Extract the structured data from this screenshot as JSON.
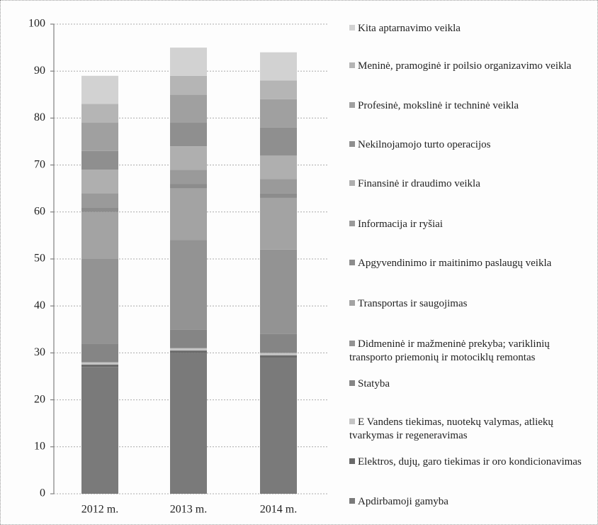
{
  "chart_data": {
    "type": "stacked_bar",
    "categories": [
      "2012 m.",
      "2013 m.",
      "2014 m."
    ],
    "ylim": [
      0,
      100
    ],
    "yticks": [
      0,
      10,
      20,
      30,
      40,
      50,
      60,
      70,
      80,
      90,
      100
    ],
    "grid": true,
    "series": [
      {
        "name": "Apdirbamoji gamyba",
        "color": "#7a7a7a",
        "values": [
          27,
          30,
          29
        ]
      },
      {
        "name": "Elektros, dujų, garo tiekimas ir oro kondicionavimas",
        "color": "#6a6a6a",
        "values": [
          0.5,
          0.5,
          0.5
        ]
      },
      {
        "name": "E Vandens tiekimas, nuotekų valymas, atliekų tvarkymas ir regeneravimas",
        "color": "#c4c4c4",
        "values": [
          0.5,
          0.5,
          0.5
        ]
      },
      {
        "name": "Statyba",
        "color": "#858585",
        "values": [
          4,
          4,
          4
        ]
      },
      {
        "name": "Didmeninė ir mažmeninė prekyba; variklinių transporto priemonių ir motociklų remontas",
        "color": "#939393",
        "values": [
          18,
          19,
          18
        ]
      },
      {
        "name": "Transportas ir saugojimas",
        "color": "#a3a3a3",
        "values": [
          10,
          11,
          11
        ]
      },
      {
        "name": "Apgyvendinimo ir maitinimo paslaugų veikla",
        "color": "#8c8c8c",
        "values": [
          1,
          1,
          1
        ]
      },
      {
        "name": "Informacija ir ryšiai",
        "color": "#9a9a9a",
        "values": [
          3,
          3,
          3
        ]
      },
      {
        "name": "Finansinė ir draudimo veikla",
        "color": "#afafaf",
        "values": [
          5,
          5,
          5
        ]
      },
      {
        "name": "Nekilnojamojo turto operacijos",
        "color": "#8f8f8f",
        "values": [
          4,
          5,
          6
        ]
      },
      {
        "name": "Profesinė, mokslinė ir techninė veikla",
        "color": "#a0a0a0",
        "values": [
          6,
          6,
          6
        ]
      },
      {
        "name": "Meninė, pramoginė ir poilsio organizavimo veikla",
        "color": "#b5b5b5",
        "values": [
          4,
          4,
          4
        ]
      },
      {
        "name": "Kita aptarnavimo veikla",
        "color": "#d2d2d2",
        "values": [
          6,
          6,
          6
        ]
      }
    ]
  }
}
